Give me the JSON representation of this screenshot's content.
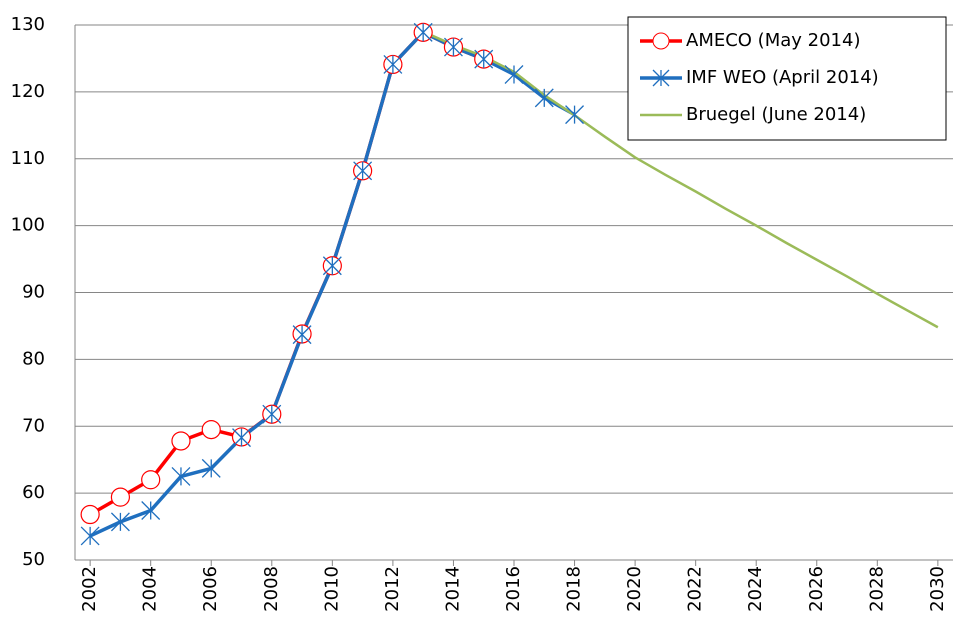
{
  "chart_data": {
    "type": "line",
    "x": [
      2002,
      2003,
      2004,
      2005,
      2006,
      2007,
      2008,
      2009,
      2010,
      2011,
      2012,
      2013,
      2014,
      2015,
      2016,
      2017,
      2018,
      2019,
      2020,
      2021,
      2022,
      2023,
      2024,
      2025,
      2026,
      2027,
      2028,
      2029,
      2030
    ],
    "series": [
      {
        "name": "AMECO (May 2014)",
        "color": "#ff0000",
        "marker": "circle",
        "values": [
          56.8,
          59.4,
          62.0,
          67.8,
          69.5,
          68.4,
          71.8,
          83.8,
          94.0,
          108.2,
          124.1,
          128.9,
          126.7,
          124.9,
          null,
          null,
          null,
          null,
          null,
          null,
          null,
          null,
          null,
          null,
          null,
          null,
          null,
          null,
          null
        ]
      },
      {
        "name": "IMF WEO (April 2014)",
        "color": "#1f6fbf",
        "marker": "asterisk",
        "values": [
          53.6,
          55.7,
          57.4,
          62.5,
          63.7,
          68.3,
          71.8,
          83.7,
          94.0,
          108.2,
          124.1,
          128.9,
          126.7,
          124.9,
          122.6,
          119.1,
          116.6,
          null,
          null,
          null,
          null,
          null,
          null,
          null,
          null,
          null,
          null,
          null,
          null
        ]
      },
      {
        "name": "Bruegel (June 2014)",
        "color": "#9bbb59",
        "marker": "none",
        "values": [
          null,
          null,
          null,
          null,
          null,
          null,
          null,
          null,
          null,
          null,
          null,
          129.0,
          127.0,
          125.3,
          123.0,
          119.5,
          116.5,
          113.3,
          110.2,
          107.6,
          105.1,
          102.5,
          100.0,
          97.4,
          94.9,
          92.4,
          89.8,
          87.3,
          84.8
        ]
      }
    ],
    "xlim": [
      2001.5,
      2030.5
    ],
    "xticks": [
      2002,
      2004,
      2006,
      2008,
      2010,
      2012,
      2014,
      2016,
      2018,
      2020,
      2022,
      2024,
      2026,
      2028,
      2030
    ],
    "ylim": [
      50,
      130
    ],
    "yticks": [
      50,
      60,
      70,
      80,
      90,
      100,
      110,
      120,
      130
    ],
    "grid": true,
    "legend": "top-right"
  }
}
